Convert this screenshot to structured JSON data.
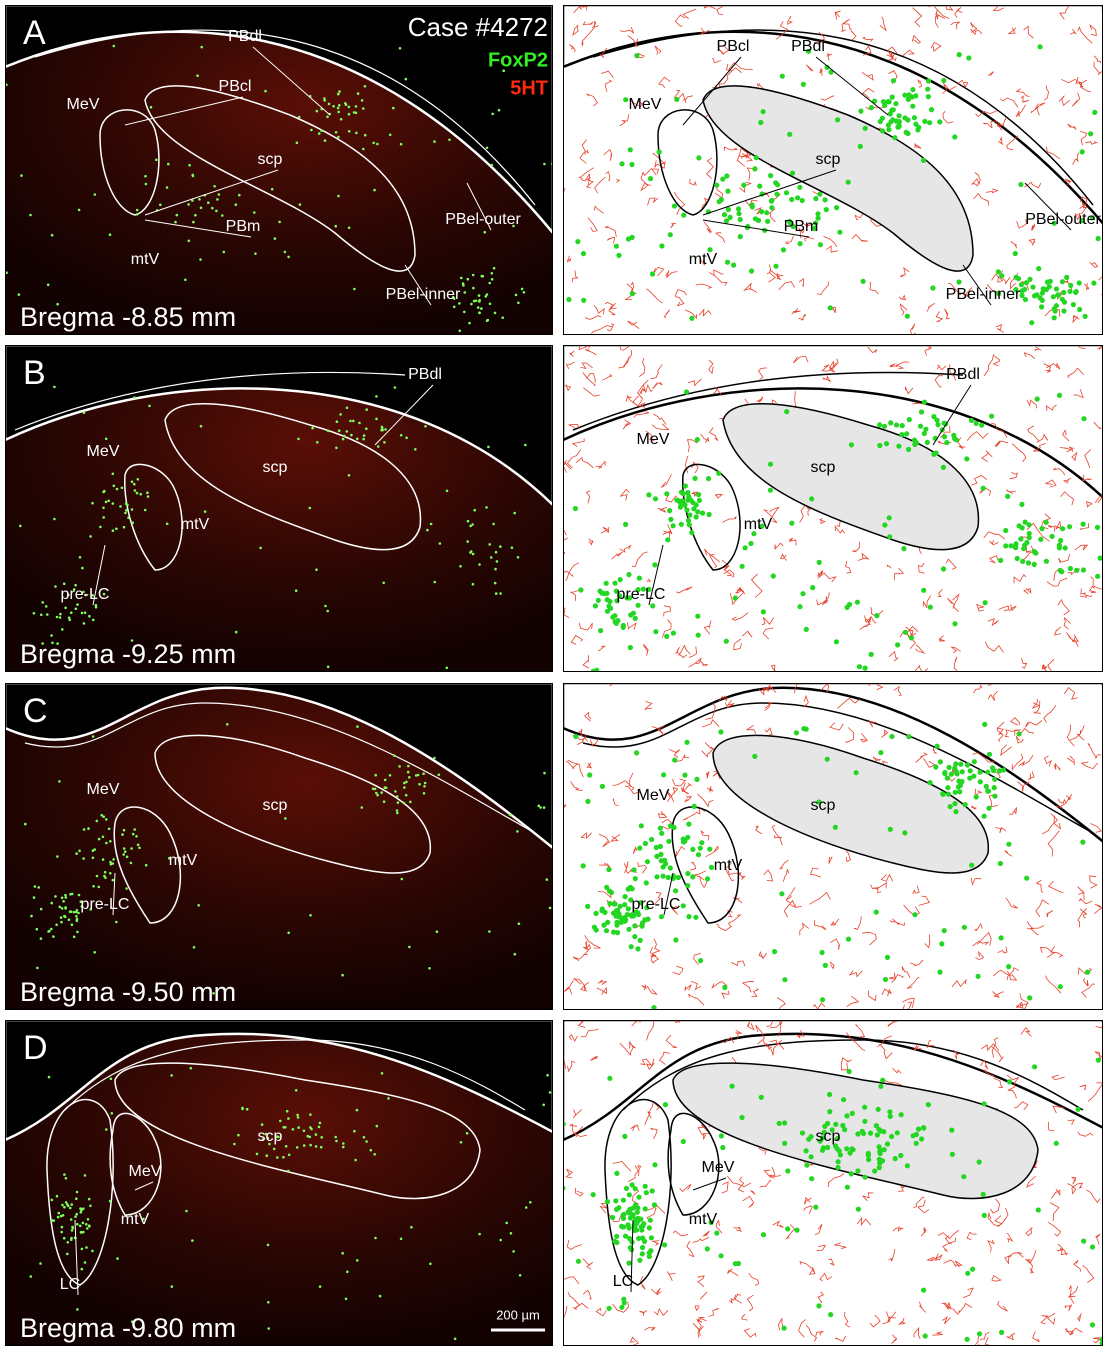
{
  "header": {
    "case": "Case #4272",
    "marker_1": "FoxP2",
    "marker_2": "5HT"
  },
  "panels": [
    {
      "letter": "A",
      "bregma": "Bregma -8.85 mm",
      "labels": [
        "PBdl",
        "PBcl",
        "MeV",
        "scp",
        "PBm",
        "mtV",
        "PBel-outer",
        "PBel-inner"
      ]
    },
    {
      "letter": "B",
      "bregma": "Bregma -9.25 mm",
      "labels": [
        "PBdl",
        "MeV",
        "scp",
        "mtV",
        "pre-LC"
      ]
    },
    {
      "letter": "C",
      "bregma": "Bregma -9.50 mm",
      "labels": [
        "MeV",
        "scp",
        "mtV",
        "pre-LC"
      ]
    },
    {
      "letter": "D",
      "bregma": "Bregma -9.80 mm",
      "labels": [
        "scp",
        "MeV",
        "mtV",
        "LC"
      ]
    }
  ],
  "scale_bar": "200 µm"
}
